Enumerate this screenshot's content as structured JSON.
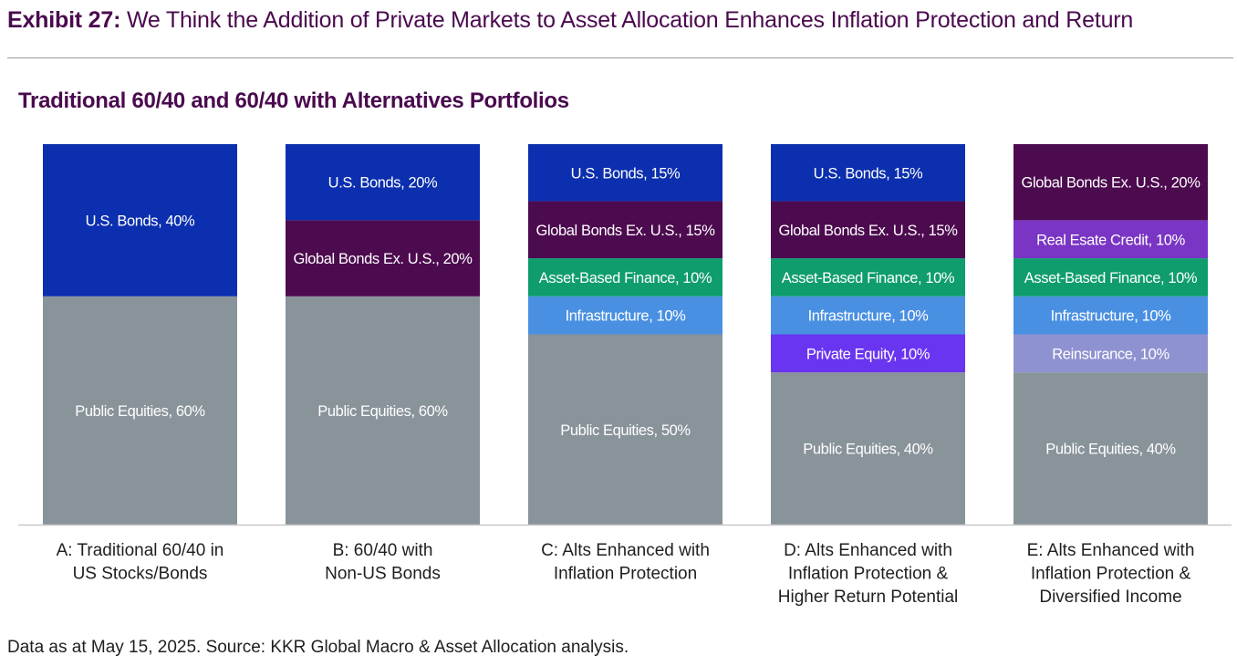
{
  "header": {
    "exhibit_label": "Exhibit 27:",
    "exhibit_title": "We Think the Addition of Private Markets to Asset Allocation Enhances Inflation Protection and Return"
  },
  "footnote": "Data as at May 15, 2025. Source: KKR Global Macro & Asset Allocation analysis.",
  "chart_data": {
    "type": "bar",
    "stacked": true,
    "title": "Traditional 60/40 and 60/40 with Alternatives Portfolios",
    "xlabel": "",
    "ylabel": "",
    "ylim": [
      0,
      100
    ],
    "categories": [
      [
        "A: Traditional 60/40 in",
        "US Stocks/Bonds"
      ],
      [
        "B: 60/40 with",
        "Non-US Bonds"
      ],
      [
        "C: Alts Enhanced with",
        "Inflation Protection"
      ],
      [
        "D: Alts Enhanced with",
        "Inflation Protection &",
        "Higher Return Potential"
      ],
      [
        "E: Alts Enhanced with",
        "Inflation Protection &",
        "Diversified Income"
      ]
    ],
    "portfolios": [
      {
        "segments": [
          {
            "label": "Public Equities, 60%",
            "value": 60,
            "color": "#89939a"
          },
          {
            "label": "U.S. Bonds, 40%",
            "value": 40,
            "color": "#0b2fae"
          }
        ]
      },
      {
        "segments": [
          {
            "label": "Public Equities, 60%",
            "value": 60,
            "color": "#89939a"
          },
          {
            "label": "Global Bonds Ex. U.S., 20%",
            "value": 20,
            "color": "#4c0a4f"
          },
          {
            "label": "U.S. Bonds, 20%",
            "value": 20,
            "color": "#0b2fae"
          }
        ]
      },
      {
        "segments": [
          {
            "label": "Public Equities, 50%",
            "value": 50,
            "color": "#89939a"
          },
          {
            "label": "Infrastructure, 10%",
            "value": 10,
            "color": "#4a90e2"
          },
          {
            "label": "Asset-Based Finance, 10%",
            "value": 10,
            "color": "#0f9d6e"
          },
          {
            "label": "Global Bonds Ex. U.S., 15%",
            "value": 15,
            "color": "#4c0a4f"
          },
          {
            "label": "U.S. Bonds, 15%",
            "value": 15,
            "color": "#0b2fae"
          }
        ]
      },
      {
        "segments": [
          {
            "label": "Public Equities, 40%",
            "value": 40,
            "color": "#89939a"
          },
          {
            "label": "Private Equity, 10%",
            "value": 10,
            "color": "#6a35f0"
          },
          {
            "label": "Infrastructure, 10%",
            "value": 10,
            "color": "#4a90e2"
          },
          {
            "label": "Asset-Based Finance, 10%",
            "value": 10,
            "color": "#0f9d6e"
          },
          {
            "label": "Global Bonds Ex. U.S., 15%",
            "value": 15,
            "color": "#4c0a4f"
          },
          {
            "label": "U.S. Bonds, 15%",
            "value": 15,
            "color": "#0b2fae"
          }
        ]
      },
      {
        "segments": [
          {
            "label": "Public Equities, 40%",
            "value": 40,
            "color": "#89939a"
          },
          {
            "label": "Reinsurance, 10%",
            "value": 10,
            "color": "#8f92d0"
          },
          {
            "label": "Infrastructure, 10%",
            "value": 10,
            "color": "#4a90e2"
          },
          {
            "label": "Asset-Based Finance, 10%",
            "value": 10,
            "color": "#0f9d6e"
          },
          {
            "label": "Real Esate Credit, 10%",
            "value": 10,
            "color": "#7a35c4"
          },
          {
            "label": "Global Bonds Ex. U.S., 20%",
            "value": 20,
            "color": "#4c0a4f"
          }
        ]
      }
    ]
  }
}
